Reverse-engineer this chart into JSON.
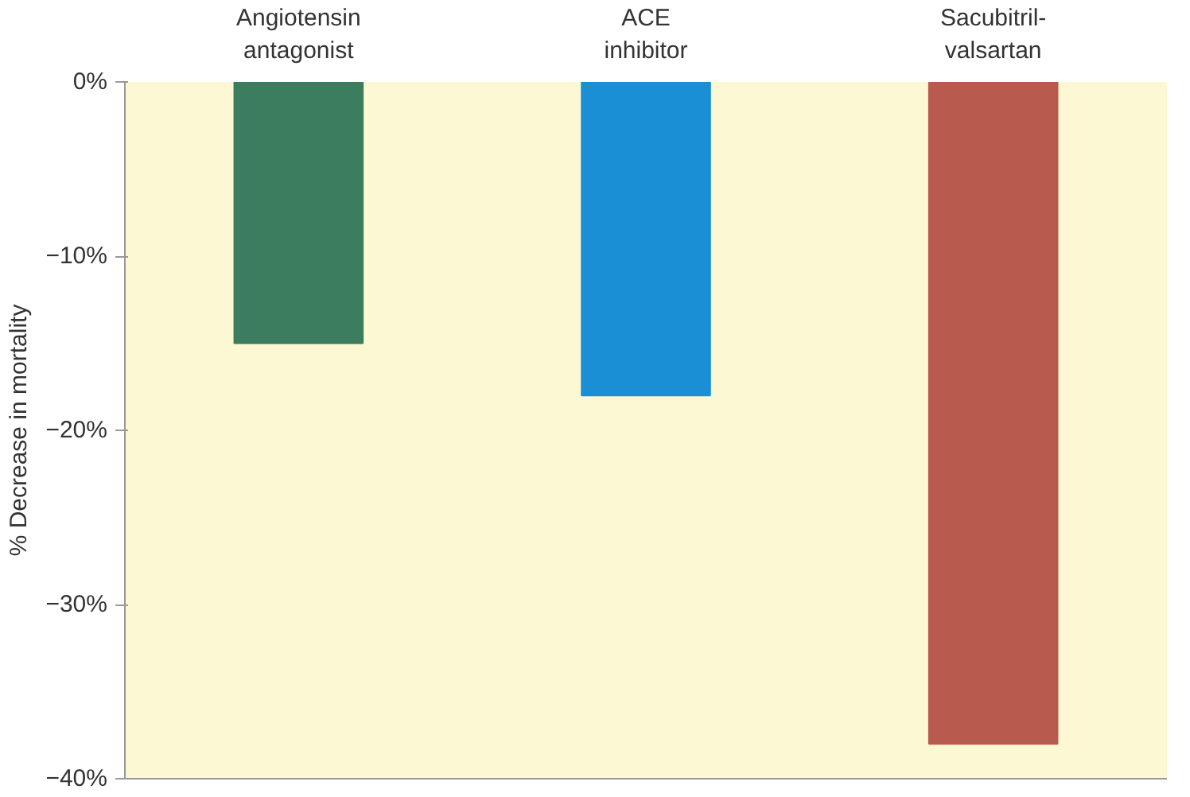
{
  "chart_data": {
    "type": "bar",
    "ylabel": "% Decrease in mortality",
    "categories": [
      "Angiotensin antagonist",
      "ACE inhibitor",
      "Sacubitril-valsartan"
    ],
    "values": [
      -15,
      -18,
      -38
    ],
    "colors": [
      "#3b7d5e",
      "#1a8fd6",
      "#b85a4e"
    ],
    "ylim": [
      -40,
      0
    ],
    "yticks": [
      {
        "value": 0,
        "label": "0%"
      },
      {
        "value": -10,
        "label": "−10%"
      },
      {
        "value": -20,
        "label": "−20%"
      },
      {
        "value": -30,
        "label": "−30%"
      },
      {
        "value": -40,
        "label": "−40%"
      }
    ],
    "grid": false
  }
}
